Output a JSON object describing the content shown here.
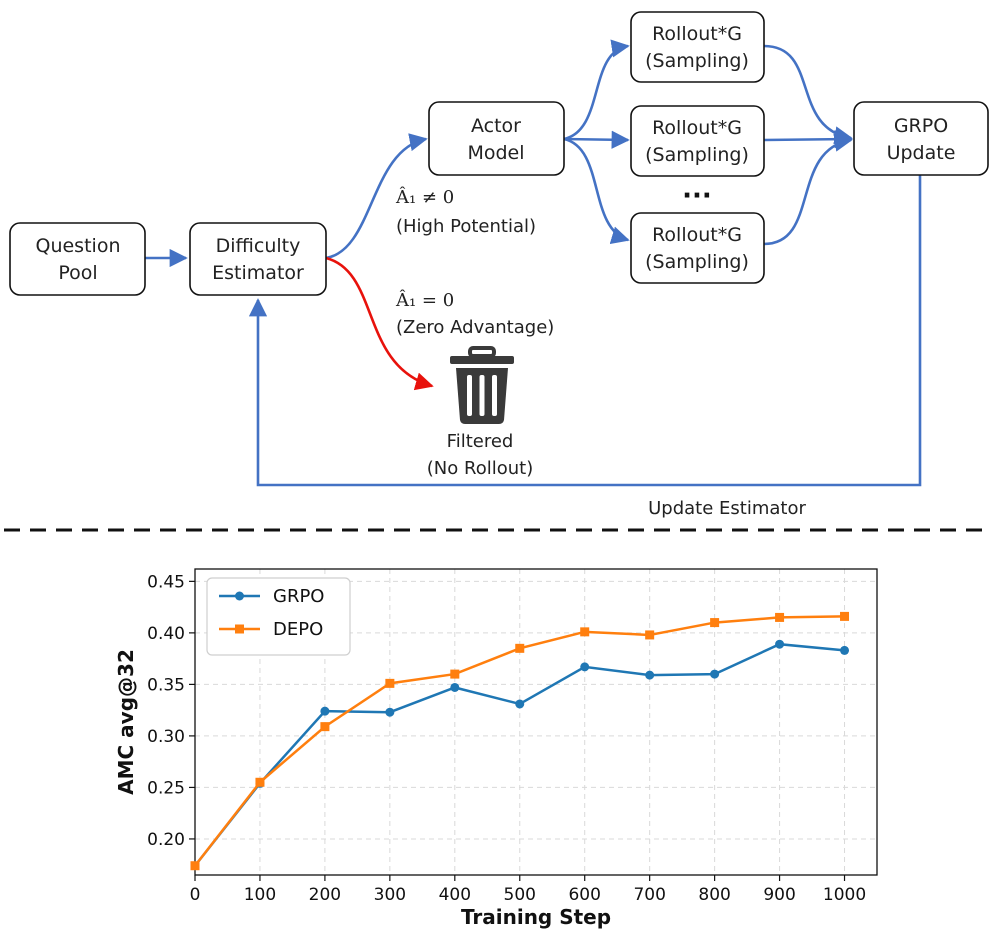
{
  "flow": {
    "nodes": {
      "question_pool": [
        "Question",
        "Pool"
      ],
      "difficulty_estimator": [
        "Difficulty",
        "Estimator"
      ],
      "actor_model": [
        "Actor",
        "Model"
      ],
      "rollout_1": [
        "Rollout*G",
        "(Sampling)"
      ],
      "rollout_2": [
        "Rollout*G",
        "(Sampling)"
      ],
      "rollout_3": [
        "Rollout*G",
        "(Sampling)"
      ],
      "grpo_update": [
        "GRPO",
        "Update"
      ]
    },
    "ellipsis": "···",
    "high_potential": {
      "math": "Â₁ ≠ 0",
      "text": "(High Potential)"
    },
    "zero_advantage": {
      "math": "Â₁ = 0",
      "text": "(Zero Advantage)"
    },
    "filtered": [
      "Filtered",
      "(No Rollout)"
    ],
    "update_estimator": "Update Estimator",
    "colors": {
      "blue_arrow": "#4472c4",
      "red_arrow": "#e8120c"
    }
  },
  "chart_data": {
    "type": "line",
    "x": [
      0,
      100,
      200,
      300,
      400,
      500,
      600,
      700,
      800,
      900,
      1000
    ],
    "series": [
      {
        "name": "GRPO",
        "color": "#1f77b4",
        "marker": "circle",
        "values": [
          0.174,
          0.254,
          0.324,
          0.323,
          0.347,
          0.331,
          0.367,
          0.359,
          0.36,
          0.389,
          0.383
        ]
      },
      {
        "name": "DEPO",
        "color": "#ff7f0e",
        "marker": "square",
        "values": [
          0.174,
          0.255,
          0.309,
          0.351,
          0.36,
          0.385,
          0.401,
          0.398,
          0.41,
          0.415,
          0.416
        ]
      }
    ],
    "xlabel": "Training Step",
    "ylabel": "AMC avg@32",
    "xticks": [
      0,
      100,
      200,
      300,
      400,
      500,
      600,
      700,
      800,
      900,
      1000
    ],
    "yticks": [
      0.2,
      0.25,
      0.3,
      0.35,
      0.4,
      0.45
    ],
    "xlim": [
      0,
      1050
    ],
    "ylim": [
      0.165,
      0.462
    ],
    "grid": true,
    "legend_position": "upper-left"
  }
}
